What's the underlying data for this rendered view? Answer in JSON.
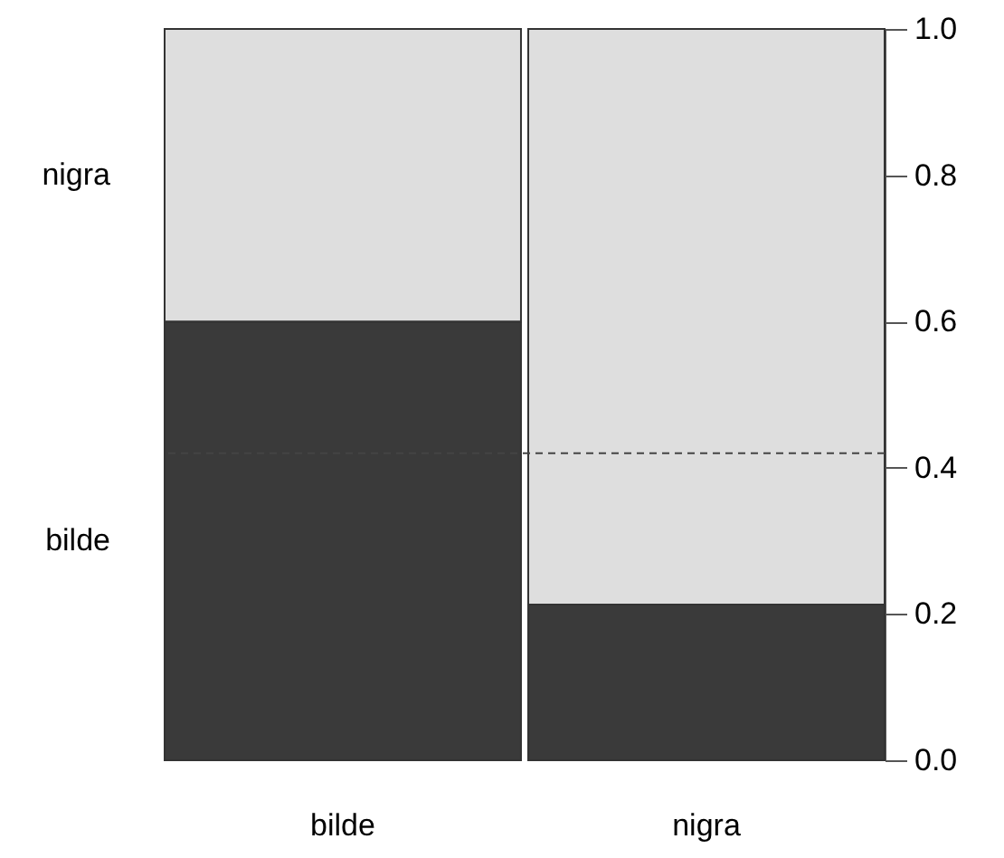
{
  "chart_data": {
    "type": "bar",
    "stacked": true,
    "categories": [
      "bilde",
      "nigra"
    ],
    "series": [
      {
        "name": "bilde",
        "color": "#3a3a3a",
        "values": [
          0.6,
          0.213
        ]
      },
      {
        "name": "nigra",
        "color": "#dedede",
        "values": [
          0.4,
          0.787
        ]
      }
    ],
    "ylim": [
      0,
      1
    ],
    "yticks": [
      {
        "value": 0,
        "label": "0.0"
      },
      {
        "value": 0.2,
        "label": "0.2"
      },
      {
        "value": 0.4,
        "label": "0.4"
      },
      {
        "value": 0.6,
        "label": "0.6"
      },
      {
        "value": 0.8,
        "label": "0.8"
      },
      {
        "value": 1,
        "label": "1.0"
      }
    ],
    "ref_lines": [
      {
        "axis": "y",
        "value": 0.42,
        "line_style": "dashed"
      }
    ],
    "grid": false
  }
}
